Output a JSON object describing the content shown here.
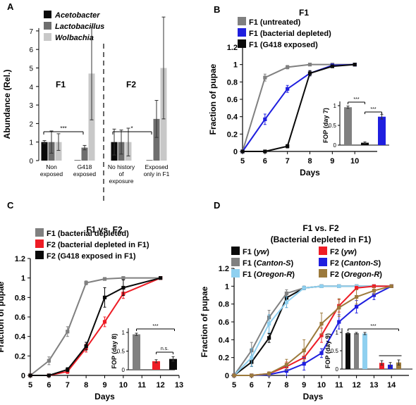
{
  "colors": {
    "black": "#0a0a0a",
    "gray": "#808080",
    "light_gray": "#c8c8c8",
    "blue": "#1f1fdf",
    "red": "#ee1c25",
    "light_blue": "#8fd0f0",
    "brown": "#9c7a3c"
  },
  "chart_data": [
    {
      "panel": "A",
      "type": "bar",
      "title": "",
      "ylabel": "Abundance (Rel.)",
      "ylim": [
        0,
        7
      ],
      "yticks": [
        "0",
        "1",
        "2",
        "3",
        "4",
        "5",
        "6",
        "7"
      ],
      "group_labels": [
        "F1",
        "F2"
      ],
      "categories": [
        "Non exposed",
        "G418 exposed",
        "No history of exposure",
        "Exposed only in F1"
      ],
      "category_lines": [
        [
          "Non",
          "exposed"
        ],
        [
          "G418",
          "exposed"
        ],
        [
          "No history",
          "of",
          "exposure"
        ],
        [
          "Exposed",
          "only in F1"
        ]
      ],
      "legend": [
        "Acetobacter",
        "Lactobacillus",
        "Wolbachia"
      ],
      "series": [
        {
          "name": "Acetobacter",
          "color": "#0a0a0a",
          "values": [
            1.0,
            0.02,
            1.0,
            0.02
          ],
          "err": [
            0.08,
            0.02,
            0.7,
            0.02
          ]
        },
        {
          "name": "Lactobacillus",
          "color": "#6e6e6e",
          "values": [
            1.0,
            0.7,
            1.0,
            2.25
          ],
          "err": [
            0.6,
            0.12,
            0.65,
            1.0
          ]
        },
        {
          "name": "Wolbachia",
          "color": "#c8c8c8",
          "values": [
            1.0,
            4.7,
            1.0,
            5.0
          ],
          "err": [
            0.45,
            2.5,
            0.75,
            2.75
          ]
        }
      ],
      "significance": [
        "***",
        "*"
      ]
    },
    {
      "panel": "B",
      "type": "line",
      "title": "F1",
      "xlabel": "Days",
      "ylabel": "Fraction of pupae",
      "x": [
        5,
        6,
        7,
        8,
        9,
        10
      ],
      "xticks": [
        "5",
        "6",
        "7",
        "8",
        "9",
        "10"
      ],
      "ylim": [
        0,
        1.2
      ],
      "yticks": [
        "0",
        "0.2",
        "0.4",
        "0.6",
        "0.8",
        "1",
        "1.2"
      ],
      "series": [
        {
          "name": "F1 (untreated)",
          "color": "#808080",
          "values": [
            0,
            0.85,
            0.97,
            1.0,
            1.0,
            1.0
          ],
          "err": [
            0,
            0.04,
            0.02,
            0,
            0,
            0
          ]
        },
        {
          "name": "F1 (bacterial depleted)",
          "color": "#1f1fdf",
          "values": [
            0,
            0.37,
            0.72,
            0.9,
            0.99,
            1.0
          ],
          "err": [
            0,
            0.06,
            0.04,
            0.03,
            0.01,
            0
          ]
        },
        {
          "name": "F1 (G418 exposed)",
          "color": "#0a0a0a",
          "values": [
            0,
            0,
            0.06,
            0.9,
            0.98,
            1.0
          ],
          "err": [
            0,
            0,
            0.02,
            0.03,
            0.01,
            0
          ]
        }
      ],
      "inset": {
        "ylabel": "FOP (day 7)",
        "ylim": [
          0,
          1
        ],
        "yticks": [
          "0",
          "0.5",
          "1"
        ],
        "bars": [
          {
            "color": "#808080",
            "value": 0.96,
            "err": 0.03
          },
          {
            "color": "#0a0a0a",
            "value": 0.06,
            "err": 0.02
          },
          {
            "color": "#1f1fdf",
            "value": 0.72,
            "err": 0.06
          }
        ],
        "significance": [
          "***",
          "***"
        ]
      }
    },
    {
      "panel": "C",
      "type": "line",
      "title": "F1 vs. F2",
      "xlabel": "Days",
      "ylabel": "Fraction of pupae",
      "x": [
        5,
        6,
        7,
        8,
        9,
        10,
        12
      ],
      "xticks": [
        "5",
        "6",
        "7",
        "8",
        "9",
        "10",
        "11",
        "12",
        "13"
      ],
      "ylim": [
        0,
        1.2
      ],
      "yticks": [
        "0",
        "0.2",
        "0.4",
        "0.6",
        "0.8",
        "1",
        "1.2"
      ],
      "series": [
        {
          "name": "F1 (bacterial depleted)",
          "color": "#808080",
          "values": [
            0,
            0.15,
            0.45,
            0.95,
            0.99,
            1.0,
            1.0
          ],
          "err": [
            0,
            0.04,
            0.05,
            0.02,
            0.01,
            0,
            0
          ]
        },
        {
          "name": "F2 (bacterial depleted in F1)",
          "color": "#ee1c25",
          "values": [
            0,
            0,
            0.04,
            0.28,
            0.55,
            0.84,
            1.0
          ],
          "err": [
            0,
            0,
            0.02,
            0.04,
            0.05,
            0.05,
            0
          ]
        },
        {
          "name": "F2 (G418 exposed in F1)",
          "color": "#0a0a0a",
          "values": [
            0,
            0,
            0.06,
            0.3,
            0.8,
            0.9,
            1.0
          ],
          "err": [
            0,
            0,
            0.02,
            0.04,
            0.1,
            0.08,
            0
          ]
        }
      ],
      "inset": {
        "ylabel": "FOP (day 8)",
        "ylim": [
          0,
          1
        ],
        "yticks": [
          "0",
          "0.5",
          "1"
        ],
        "bars": [
          {
            "color": "#808080",
            "value": 0.95,
            "err": 0.03
          },
          {
            "color": "#ee1c25",
            "value": 0.23,
            "err": 0.04
          },
          {
            "color": "#0a0a0a",
            "value": 0.29,
            "err": 0.06
          }
        ],
        "significance": [
          "***",
          "n.s."
        ]
      }
    },
    {
      "panel": "D",
      "type": "line",
      "title": "F1 vs. F2",
      "subtitle": "(Bacterial depleted in F1)",
      "xlabel": "Days",
      "ylabel": "Fraction of pupae",
      "x": [
        5,
        6,
        7,
        8,
        9,
        10,
        11,
        12,
        13,
        14
      ],
      "xticks": [
        "5",
        "6",
        "7",
        "8",
        "9",
        "10",
        "11",
        "12",
        "13",
        "14"
      ],
      "ylim": [
        0,
        1.2
      ],
      "yticks": [
        "0",
        "0.2",
        "0.4",
        "0.6",
        "0.8",
        "1",
        "1.2"
      ],
      "legend_left": [
        {
          "strain": "F1 (",
          "genotype": "yw",
          "close": ")"
        },
        {
          "strain": "F1 (",
          "genotype": "Canton-S",
          "close": ")"
        },
        {
          "strain": "F1 (",
          "genotype": "Oregon-R",
          "close": ")"
        }
      ],
      "legend_right": [
        {
          "strain": "F2 (",
          "genotype": "yw",
          "close": ")"
        },
        {
          "strain": "F2 (",
          "genotype": "Canton-S",
          "close": ")"
        },
        {
          "strain": "F2 (",
          "genotype": "Oregon-R",
          "close": ")"
        }
      ],
      "series": [
        {
          "color": "#0a0a0a",
          "values": [
            0,
            0.15,
            0.42,
            0.87,
            0.98,
            1.0,
            1.0,
            1.0,
            1.0,
            1.0
          ],
          "err": [
            0,
            0.05,
            0.05,
            0.05,
            0.02,
            0,
            0,
            0,
            0,
            0
          ]
        },
        {
          "color": "#808080",
          "values": [
            0,
            0.28,
            0.65,
            0.92,
            0.98,
            1.0,
            1.0,
            1.0,
            1.0,
            1.0
          ],
          "err": [
            0,
            0.09,
            0.08,
            0.04,
            0.02,
            0,
            0,
            0,
            0,
            0
          ]
        },
        {
          "color": "#8fd0f0",
          "values": [
            0,
            0.2,
            0.58,
            0.82,
            0.98,
            1.0,
            1.0,
            1.0,
            1.0,
            1.0
          ],
          "err": [
            0,
            0.1,
            0.1,
            0.06,
            0.02,
            0,
            0,
            0,
            0,
            0
          ]
        },
        {
          "color": "#ee1c25",
          "values": [
            0,
            0,
            0.02,
            0.1,
            0.2,
            0.45,
            0.78,
            0.98,
            1.0,
            1.0
          ],
          "err": [
            0,
            0,
            0.02,
            0.05,
            0.08,
            0.08,
            0.07,
            0.02,
            0,
            0
          ]
        },
        {
          "color": "#1f1fdf",
          "values": [
            0,
            0,
            0.01,
            0.05,
            0.13,
            0.25,
            0.6,
            0.77,
            0.9,
            1.0
          ],
          "err": [
            0,
            0,
            0.01,
            0.05,
            0.07,
            0.05,
            0.08,
            0.07,
            0.05,
            0
          ]
        },
        {
          "color": "#9c7a3c",
          "values": [
            0,
            0,
            0.02,
            0.12,
            0.28,
            0.58,
            0.76,
            0.88,
            0.95,
            1.0
          ],
          "err": [
            0,
            0,
            0.02,
            0.06,
            0.12,
            0.12,
            0.1,
            0.08,
            0.04,
            0
          ]
        }
      ],
      "inset": {
        "ylabel": "FOP (day 9)",
        "ylim": [
          0,
          1
        ],
        "yticks": [
          "0",
          "0.5",
          "1"
        ],
        "bars": [
          {
            "color": "#0a0a0a",
            "value": 0.98,
            "err": 0.02
          },
          {
            "color": "#808080",
            "value": 0.98,
            "err": 0.02
          },
          {
            "color": "#8fd0f0",
            "value": 0.97,
            "err": 0.03
          },
          {
            "color": "#ee1c25",
            "value": 0.17,
            "err": 0.06
          },
          {
            "color": "#1f1fdf",
            "value": 0.12,
            "err": 0.06
          },
          {
            "color": "#9c7a3c",
            "value": 0.18,
            "err": 0.07
          }
        ],
        "significance": [
          "***"
        ]
      }
    }
  ],
  "panel_letters": [
    "A",
    "B",
    "C",
    "D"
  ]
}
